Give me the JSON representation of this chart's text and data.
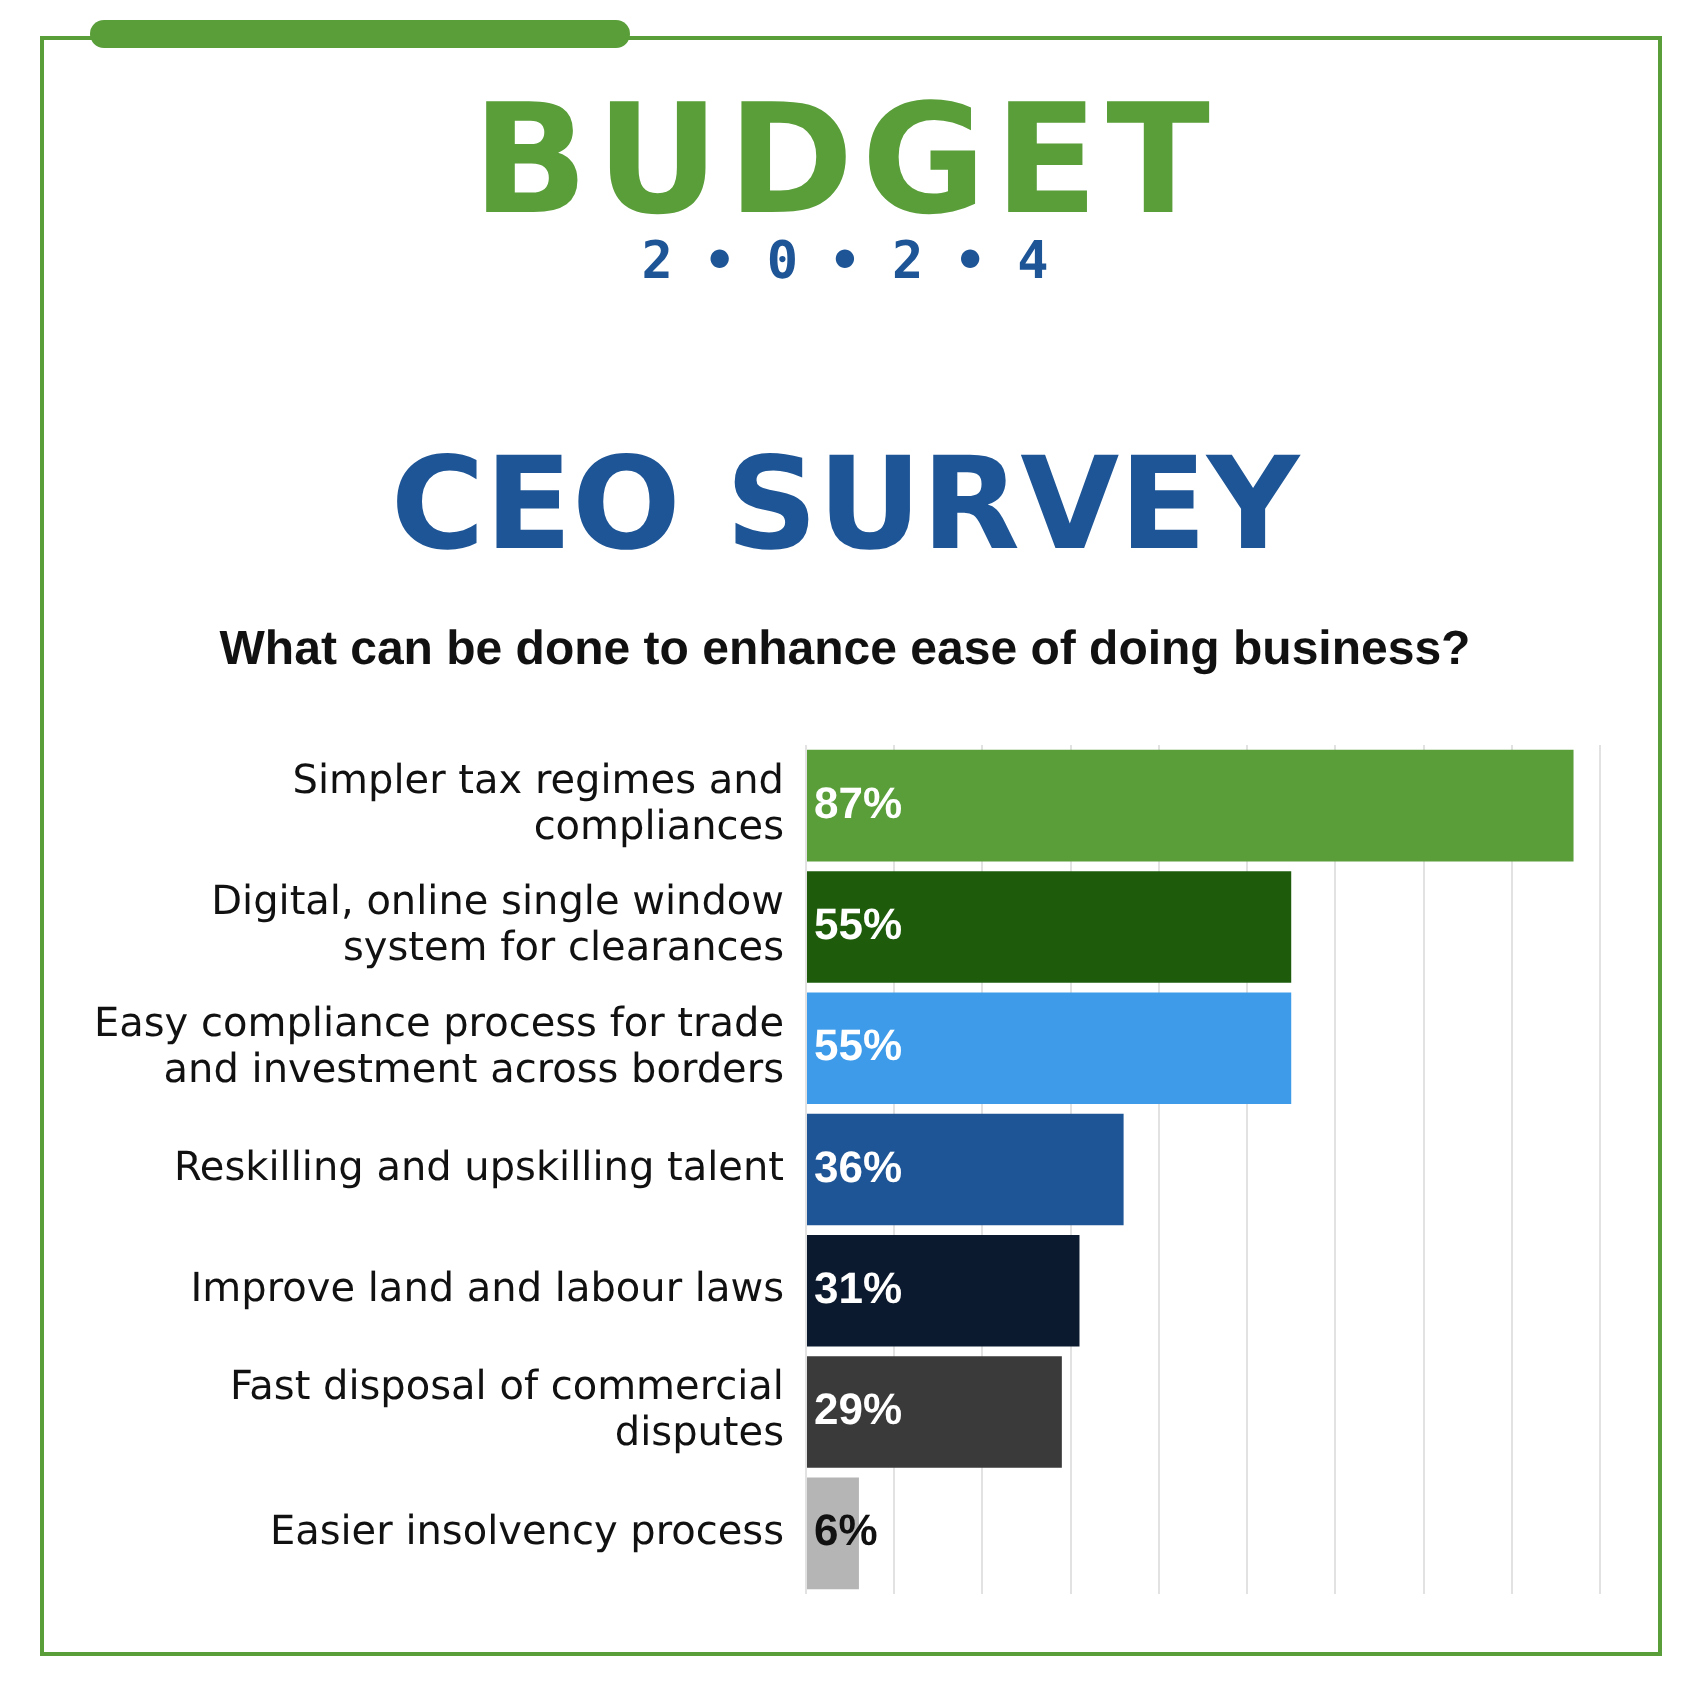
{
  "chart_data": {
    "type": "bar",
    "orientation": "horizontal",
    "title": "BUDGET",
    "subtitle": "2 • 0 • 2 • 4",
    "annotations": [
      "CEO SURVEY",
      "What can be done to enhance ease of doing business?"
    ],
    "categories": [
      "Simpler tax regimes and compliances",
      "Digital, online single window system for clearances",
      "Easy compliance process for trade and investment across borders",
      "Reskilling and upskilling talent",
      "Improve land and labour laws",
      "Fast disposal of commercial disputes",
      "Easier insolvency process"
    ],
    "values": [
      87,
      55,
      55,
      36,
      31,
      29,
      6
    ],
    "colors": [
      "#5a9e3a",
      "#1e5c0c",
      "#3d9be9",
      "#1e5596",
      "#0b1a2e",
      "#3a3a3a",
      "#b5b5b5"
    ],
    "value_labels": [
      "87%",
      "55%",
      "55%",
      "36%",
      "31%",
      "29%",
      "6%"
    ],
    "tick_labels": "y",
    "grid": "x",
    "legend": false
  }
}
